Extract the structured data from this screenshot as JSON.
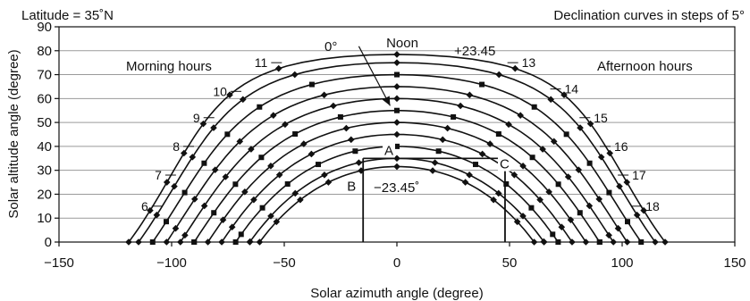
{
  "chart_data": {
    "type": "line",
    "title_left": "Latitude = 35˚N",
    "title_right": "Declination curves in steps of 5°",
    "xlabel": "Solar azimuth angle (degree)",
    "ylabel": "Solar altitude angle (degree)",
    "xlim": [
      -150,
      150
    ],
    "ylim": [
      0,
      90
    ],
    "xticks": [
      -150,
      -100,
      -50,
      0,
      50,
      100,
      150
    ],
    "xtick_labels": [
      "−150",
      "−100",
      "−50",
      "0",
      "50",
      "100",
      "150"
    ],
    "yticks": [
      0,
      10,
      20,
      30,
      40,
      50,
      60,
      70,
      80,
      90
    ],
    "ytick_labels": [
      "0",
      "10",
      "20",
      "30",
      "40",
      "50",
      "60",
      "70",
      "80",
      "90"
    ],
    "grid": "horizontal",
    "region_labels": {
      "morning": "Morning hours",
      "afternoon": "Afternoon hours",
      "noon": "Noon"
    },
    "declination_labels": {
      "max": "+23.45",
      "zero": "0°",
      "min": "−23.45˚"
    },
    "annotation_points": [
      {
        "label": "A",
        "x": 0,
        "y": 35
      },
      {
        "label": "B",
        "x": -15,
        "y": 30
      },
      {
        "label": "C",
        "x": 48,
        "y": 30
      }
    ],
    "annotation_lines": {
      "horizontal_at": 35,
      "vertical_at": [
        -15,
        48
      ],
      "x_range": [
        -15,
        48
      ]
    },
    "arrow": {
      "from": [
        -5,
        77
      ],
      "to": [
        -3,
        57
      ]
    },
    "hour_labels": [
      {
        "label": "6",
        "x": -112,
        "y": 15
      },
      {
        "label": "7",
        "x": -106,
        "y": 28
      },
      {
        "label": "8",
        "x": -98,
        "y": 40
      },
      {
        "label": "9",
        "x": -89,
        "y": 52
      },
      {
        "label": "10",
        "x": -77,
        "y": 63
      },
      {
        "label": "11",
        "x": -59,
        "y": 75
      },
      {
        "label": "13",
        "x": 57,
        "y": 75
      },
      {
        "label": "14",
        "x": 76,
        "y": 64
      },
      {
        "label": "15",
        "x": 89,
        "y": 52
      },
      {
        "label": "16",
        "x": 98,
        "y": 40
      },
      {
        "label": "17",
        "x": 106,
        "y": 28
      },
      {
        "label": "18",
        "x": 112,
        "y": 15
      }
    ],
    "latitude_deg": 35,
    "declinations": [
      23.45,
      20,
      15,
      10,
      5,
      0,
      -5,
      -10,
      -15,
      -20,
      -23.45
    ],
    "marker_declinations": [
      15,
      0,
      -15
    ]
  }
}
